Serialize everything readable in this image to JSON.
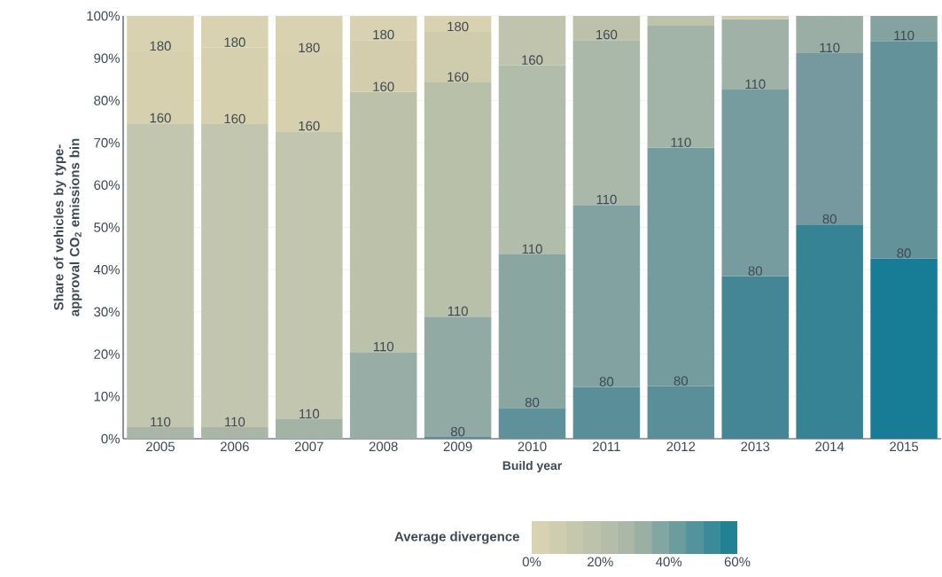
{
  "chart_data": {
    "type": "bar",
    "stacked": true,
    "categories": [
      "2005",
      "2006",
      "2007",
      "2008",
      "2009",
      "2010",
      "2011",
      "2012",
      "2013",
      "2014",
      "2015"
    ],
    "xlabel": "Build year",
    "ylabel": "Share of vehicles by type-approval CO$_{2}$ emissions bin",
    "ylim": [
      0,
      100
    ],
    "yticks": [
      {
        "value": 0,
        "label": "0%"
      },
      {
        "value": 10,
        "label": "10%"
      },
      {
        "value": 20,
        "label": "20%"
      },
      {
        "value": 30,
        "label": "30%"
      },
      {
        "value": 40,
        "label": "40%"
      },
      {
        "value": 50,
        "label": "50%"
      },
      {
        "value": 60,
        "label": "60%"
      },
      {
        "value": 70,
        "label": "70%"
      },
      {
        "value": 80,
        "label": "80%"
      },
      {
        "value": 90,
        "label": "90%"
      },
      {
        "value": 100,
        "label": "100%"
      }
    ],
    "grid": "y",
    "clabel": "Average divergence",
    "clim": [
      0,
      60
    ],
    "cticks": [
      {
        "value": 0,
        "label": "0%"
      },
      {
        "value": 20,
        "label": "20%"
      },
      {
        "value": 40,
        "label": "40%"
      },
      {
        "value": 60,
        "label": "60%"
      }
    ],
    "series": [
      {
        "name": "80",
        "values": [
          null,
          null,
          null,
          null,
          0.4,
          7.3,
          12.2,
          12.4,
          38.4,
          50.7,
          42.6
        ],
        "colors": [
          null,
          null,
          null,
          null,
          "#5a8e99",
          "#5f919b",
          "#5a8e99",
          "#5a8e99",
          "#448696",
          "#378396",
          "#177c95"
        ]
      },
      {
        "name": "110",
        "values": [
          2.7,
          2.7,
          4.6,
          20.5,
          28.5,
          36.3,
          43.1,
          56.4,
          44.2,
          40.5,
          51.5
        ],
        "colors": [
          "#a9b5a6",
          "#a9b5a6",
          "#a3b3a6",
          "#97ada5",
          "#91aaa4",
          "#8aa6a1",
          "#82a2a1",
          "#749b9e",
          "#779c9f",
          "#75999e",
          "#64929a"
        ]
      },
      {
        "name": "160",
        "values": [
          71.9,
          71.7,
          68.1,
          61.5,
          55.4,
          44.7,
          39.0,
          28.9,
          16.6,
          8.8,
          5.9
        ],
        "colors": [
          "#c2c6ae",
          "#c2c6ae",
          "#c2c6ae",
          "#bcc1aa",
          "#b8c0aa",
          "#b1bcaa",
          "#aab8aa",
          "#a2b3a7",
          "#a0b1a7",
          "#9aaea5",
          "#84a2a0"
        ]
      },
      {
        "name": "180",
        "values": [
          17.0,
          18.1,
          18.5,
          12.3,
          11.9,
          11.7,
          5.7,
          2.3,
          0.8,
          null,
          null
        ],
        "colors": [
          "#d7d0ae",
          "#d7d0ae",
          "#d7d0ae",
          "#d3cdae",
          "#cfcbad",
          "#c1c4ad",
          "#bdc1aa",
          "#c0c3ab",
          "#d0cbad",
          null,
          null
        ]
      },
      {
        "values": [
          8.4,
          7.5,
          8.8,
          5.7,
          3.8,
          null,
          null,
          null,
          null,
          null,
          null
        ],
        "colors": [
          "#d9d2b0",
          "#d9d2b0",
          "#d9d2b0",
          "#d9d2b0",
          "#d9d2b0",
          null,
          null,
          null,
          null,
          null,
          null
        ]
      }
    ]
  }
}
